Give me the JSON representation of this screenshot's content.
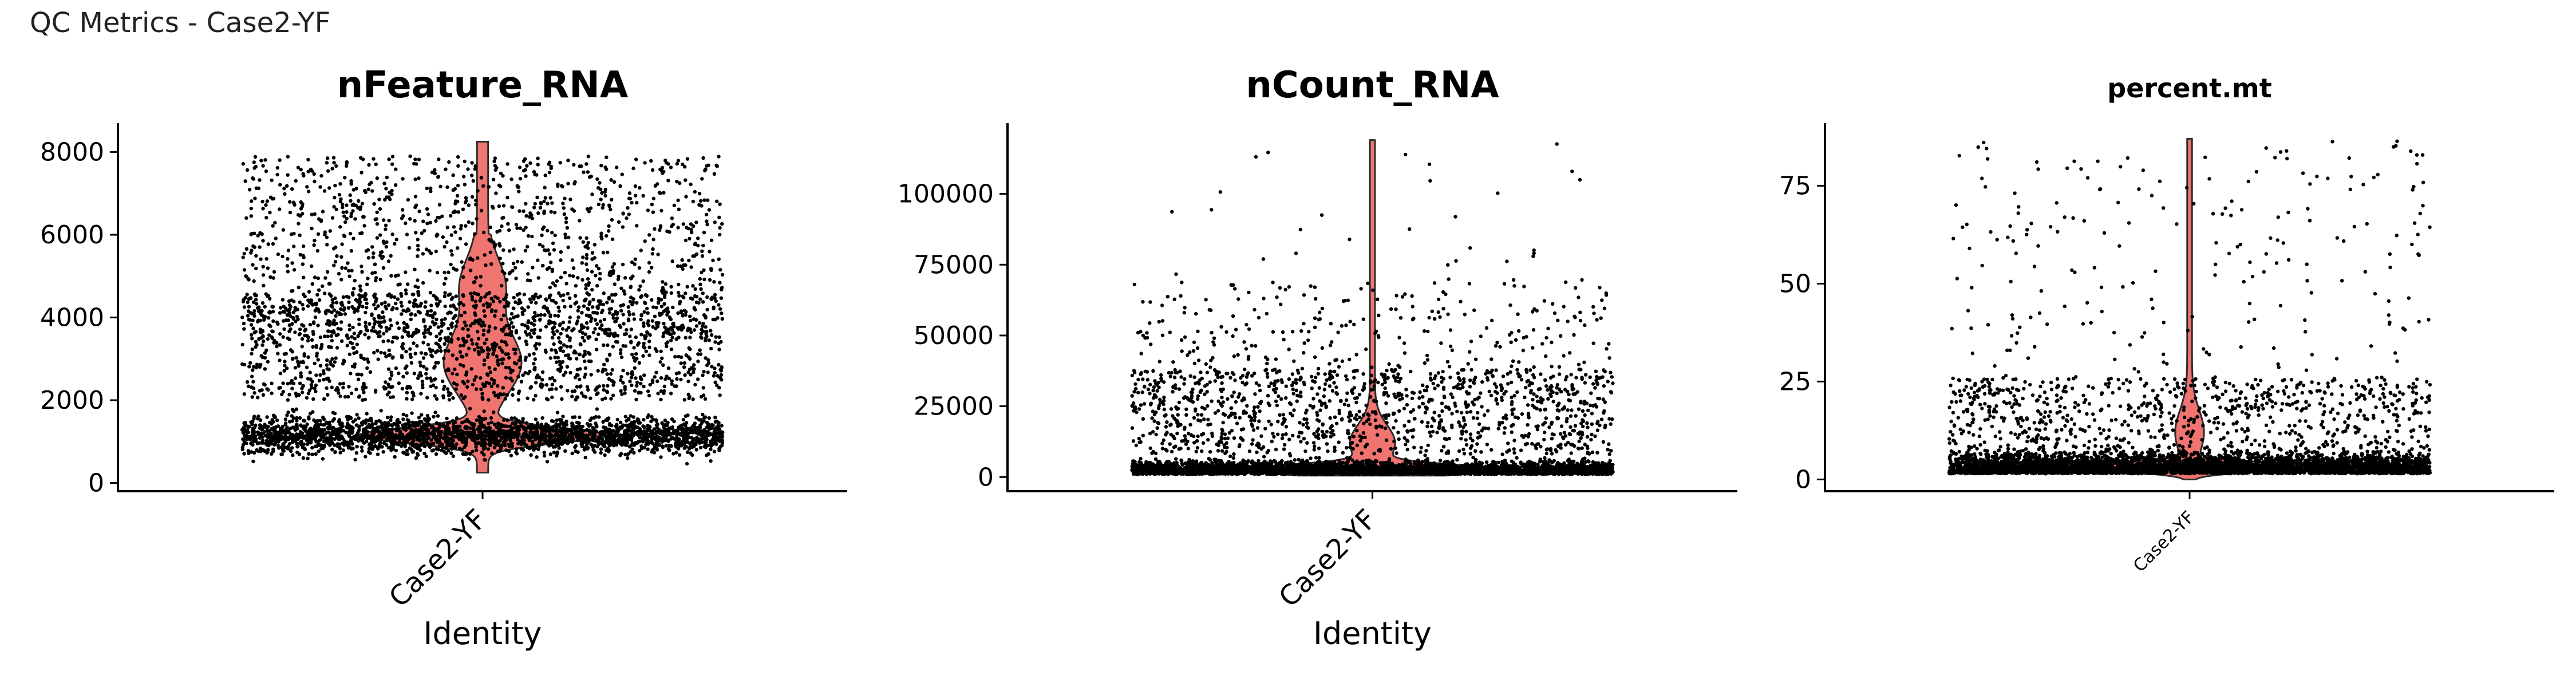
{
  "figure": {
    "suptitle": "QC Metrics - Case2-YF"
  },
  "colors": {
    "violin_fill": "#f07470",
    "violin_stroke": "#2b2b2b",
    "point": "#000000",
    "axis": "#000000"
  },
  "chart_data": [
    {
      "type": "violin",
      "title": "nFeature_RNA",
      "xlabel": "Identity",
      "ylabel": "",
      "categories": [
        "Case2-YF"
      ],
      "ylim": [
        -200,
        8700
      ],
      "yticks": [
        0,
        2000,
        4000,
        6000,
        8000
      ],
      "ytick_labels": [
        "0",
        "2000",
        "4000",
        "6000",
        "8000"
      ],
      "distribution": {
        "min": 250,
        "median": 1250,
        "mode": 1150,
        "secondary_mode": 3000,
        "max": 8250
      }
    },
    {
      "type": "violin",
      "title": "nCount_RNA",
      "xlabel": "Identity",
      "ylabel": "",
      "categories": [
        "Case2-YF"
      ],
      "ylim": [
        -5000,
        125000
      ],
      "yticks": [
        0,
        25000,
        50000,
        75000,
        100000
      ],
      "ytick_labels": [
        "0",
        "25000",
        "50000",
        "75000",
        "100000"
      ],
      "distribution": {
        "min": 500,
        "median": 2500,
        "mode": 2500,
        "max": 119000
      }
    },
    {
      "type": "violin",
      "title": "percent.mt",
      "xlabel": "",
      "ylabel": "",
      "categories": [
        "Case2-YF"
      ],
      "ylim": [
        -3,
        91
      ],
      "yticks": [
        0,
        25,
        50,
        75
      ],
      "ytick_labels": [
        "0",
        "25",
        "50",
        "75"
      ],
      "distribution": {
        "min": 0,
        "median": 3,
        "mode": 2.5,
        "max": 87
      }
    }
  ]
}
